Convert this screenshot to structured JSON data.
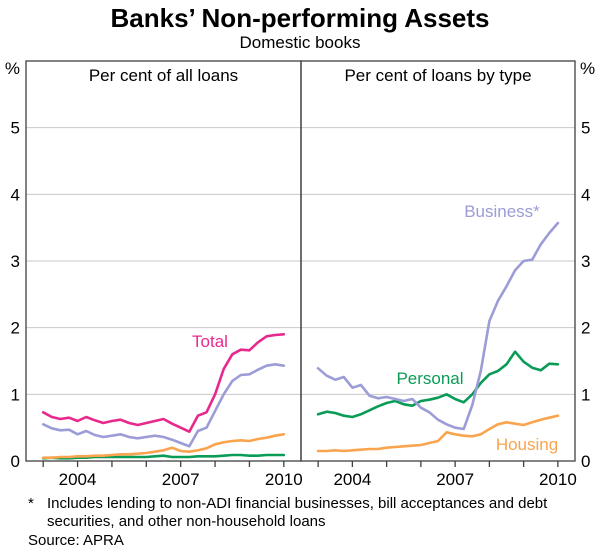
{
  "header": {
    "title": "Banks’ Non-performing Assets",
    "subtitle": "Domestic books"
  },
  "panels": [
    {
      "caption": "Per cent of all loans"
    },
    {
      "caption": "Per cent of loans by type"
    }
  ],
  "axes": {
    "unit": "%",
    "y_tick_labels": [
      "0",
      "1",
      "2",
      "3",
      "4",
      "5"
    ],
    "y_max": 6,
    "x_tick_labels": [
      "2004",
      "2007",
      "2010"
    ],
    "x_domain": [
      2003,
      2011
    ],
    "x_ticks": [
      2003.5,
      2004.5,
      2005.5,
      2006.5,
      2007.5,
      2008.5,
      2009.5,
      2010.5
    ],
    "grid": true
  },
  "chart_data": [
    {
      "type": "line",
      "panel": "left",
      "title": "Per cent of all loans",
      "x_start": 2003.5,
      "x_step": 0.25,
      "x_unit": "year, quarterly",
      "ylim": [
        0,
        6
      ],
      "series": [
        {
          "name": "Total",
          "color": "#E8298C",
          "values": [
            0.73,
            0.66,
            0.63,
            0.65,
            0.6,
            0.66,
            0.61,
            0.57,
            0.6,
            0.62,
            0.57,
            0.54,
            0.57,
            0.6,
            0.63,
            0.56,
            0.5,
            0.44,
            0.68,
            0.73,
            1.0,
            1.38,
            1.6,
            1.67,
            1.66,
            1.78,
            1.87,
            1.89,
            1.9
          ]
        },
        {
          "name": "Business",
          "color": "#9C9CD7",
          "values": [
            0.55,
            0.49,
            0.46,
            0.47,
            0.4,
            0.45,
            0.39,
            0.36,
            0.38,
            0.4,
            0.36,
            0.34,
            0.36,
            0.38,
            0.36,
            0.32,
            0.27,
            0.22,
            0.45,
            0.5,
            0.75,
            1.0,
            1.2,
            1.29,
            1.3,
            1.37,
            1.43,
            1.45,
            1.43
          ]
        },
        {
          "name": "Personal",
          "color": "#0A9C57",
          "values": [
            0.04,
            0.05,
            0.04,
            0.04,
            0.05,
            0.05,
            0.06,
            0.06,
            0.06,
            0.06,
            0.06,
            0.06,
            0.06,
            0.07,
            0.08,
            0.06,
            0.06,
            0.06,
            0.07,
            0.07,
            0.07,
            0.08,
            0.09,
            0.09,
            0.08,
            0.08,
            0.09,
            0.09,
            0.09
          ]
        },
        {
          "name": "Housing",
          "color": "#F9A44F",
          "values": [
            0.05,
            0.05,
            0.06,
            0.06,
            0.07,
            0.07,
            0.08,
            0.08,
            0.09,
            0.1,
            0.1,
            0.11,
            0.12,
            0.14,
            0.16,
            0.2,
            0.15,
            0.14,
            0.16,
            0.19,
            0.25,
            0.28,
            0.3,
            0.31,
            0.3,
            0.33,
            0.35,
            0.38,
            0.4
          ]
        }
      ]
    },
    {
      "type": "line",
      "panel": "right",
      "title": "Per cent of loans by type",
      "x_start": 2003.5,
      "x_step": 0.25,
      "x_unit": "year, quarterly",
      "ylim": [
        0,
        6
      ],
      "series": [
        {
          "name": "Business*",
          "color": "#9C9CD7",
          "values": [
            1.39,
            1.28,
            1.22,
            1.26,
            1.1,
            1.14,
            0.98,
            0.94,
            0.96,
            0.93,
            0.9,
            0.93,
            0.8,
            0.73,
            0.62,
            0.55,
            0.5,
            0.48,
            0.84,
            1.35,
            2.1,
            2.4,
            2.62,
            2.86,
            3.0,
            3.02,
            3.25,
            3.42,
            3.57
          ]
        },
        {
          "name": "Personal",
          "color": "#0A9C57",
          "values": [
            0.7,
            0.74,
            0.72,
            0.68,
            0.66,
            0.7,
            0.76,
            0.82,
            0.87,
            0.9,
            0.85,
            0.83,
            0.9,
            0.92,
            0.95,
            1.0,
            0.93,
            0.88,
            1.0,
            1.17,
            1.3,
            1.35,
            1.45,
            1.64,
            1.49,
            1.4,
            1.36,
            1.46,
            1.45
          ]
        },
        {
          "name": "Housing",
          "color": "#F9A44F",
          "values": [
            0.15,
            0.15,
            0.16,
            0.15,
            0.16,
            0.17,
            0.18,
            0.18,
            0.2,
            0.21,
            0.22,
            0.23,
            0.24,
            0.27,
            0.3,
            0.43,
            0.4,
            0.38,
            0.37,
            0.4,
            0.48,
            0.55,
            0.58,
            0.56,
            0.54,
            0.58,
            0.62,
            0.65,
            0.68
          ]
        }
      ]
    }
  ],
  "footnote": {
    "marker": "*",
    "line1": "Includes lending to non-ADI financial businesses, bill acceptances and debt",
    "line2": "securities, and other non-household loans",
    "source": "Source: APRA"
  },
  "colors": {
    "total": "#E8298C",
    "business": "#9C9CD7",
    "personal": "#0A9C57",
    "housing": "#F9A44F",
    "grid": "#C8C8C8",
    "axis": "#404040",
    "text": "#000000"
  }
}
